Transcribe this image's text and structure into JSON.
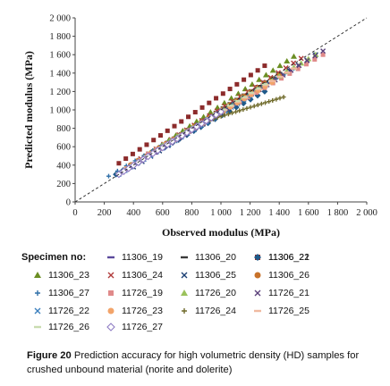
{
  "chart_data": {
    "type": "scatter",
    "xlabel": "Observed modulus (MPa)",
    "ylabel": "Predicted modulus (MPa)",
    "xlim": [
      0,
      2000
    ],
    "ylim": [
      0,
      2000
    ],
    "xticks": [
      "0",
      "200",
      "400",
      "600",
      "800",
      "1 000",
      "1 200",
      "1 400",
      "1 600",
      "1 800",
      "2 000"
    ],
    "yticks": [
      "0",
      "200",
      "400",
      "600",
      "800",
      "1 000",
      "1 200",
      "1 400",
      "1 600",
      "1 800",
      "2 000"
    ],
    "grid": false,
    "reference_line": "y = x (dashed)",
    "legend_title": "Specimen no:",
    "series": [
      {
        "name": "11306_19",
        "marker": "dash",
        "color": "#5b4a9c",
        "range": [
          [
            300,
            300
          ],
          [
            1300,
            1250
          ]
        ]
      },
      {
        "name": "11306_20",
        "marker": "dash",
        "color": "#3a3a3a",
        "range": [
          [
            400,
            420
          ],
          [
            1400,
            1400
          ]
        ]
      },
      {
        "name": "11306_21",
        "marker": "square",
        "color": "#8c2b2b",
        "range": [
          [
            300,
            420
          ],
          [
            1300,
            1480
          ]
        ]
      },
      {
        "name": "11306_22",
        "marker": "diamond",
        "color": "#1f5a8a",
        "range": [
          [
            280,
            300
          ],
          [
            1300,
            1200
          ]
        ]
      },
      {
        "name": "11306_23",
        "marker": "triangle",
        "color": "#6b8e23",
        "range": [
          [
            500,
            520
          ],
          [
            1500,
            1580
          ]
        ]
      },
      {
        "name": "11306_24",
        "marker": "x",
        "color": "#b03a3a",
        "range": [
          [
            450,
            470
          ],
          [
            1550,
            1560
          ]
        ]
      },
      {
        "name": "11306_25",
        "marker": "x",
        "color": "#1a3e73",
        "range": [
          [
            400,
            380
          ],
          [
            1650,
            1600
          ]
        ]
      },
      {
        "name": "11306_26",
        "marker": "circle",
        "color": "#c8722a",
        "range": [
          [
            380,
            400
          ],
          [
            1400,
            1380
          ]
        ]
      },
      {
        "name": "11306_27",
        "marker": "plus",
        "color": "#2f6fa8",
        "range": [
          [
            230,
            280
          ],
          [
            1500,
            1450
          ]
        ]
      },
      {
        "name": "11726_19",
        "marker": "square",
        "color": "#e08a8a",
        "range": [
          [
            500,
            520
          ],
          [
            1700,
            1600
          ]
        ]
      },
      {
        "name": "11726_20",
        "marker": "triangle",
        "color": "#9bc25c",
        "range": [
          [
            600,
            620
          ],
          [
            1650,
            1600
          ]
        ]
      },
      {
        "name": "11726_21",
        "marker": "x",
        "color": "#5a3f7a",
        "range": [
          [
            550,
            540
          ],
          [
            1700,
            1640
          ]
        ]
      },
      {
        "name": "11726_22",
        "marker": "x",
        "color": "#3b7fbd",
        "range": [
          [
            300,
            300
          ],
          [
            1200,
            1150
          ]
        ]
      },
      {
        "name": "11726_23",
        "marker": "circle",
        "color": "#f2a46a",
        "range": [
          [
            350,
            360
          ],
          [
            1350,
            1300
          ]
        ]
      },
      {
        "name": "11726_24",
        "marker": "plus",
        "color": "#6f6a2a",
        "range": [
          [
            900,
            880
          ],
          [
            1430,
            1140
          ]
        ]
      },
      {
        "name": "11726_25",
        "marker": "dash",
        "color": "#f0b9a0",
        "range": [
          [
            500,
            500
          ],
          [
            1500,
            1450
          ]
        ]
      },
      {
        "name": "11726_26",
        "marker": "dash",
        "color": "#c9dcb0",
        "range": [
          [
            300,
            310
          ],
          [
            1300,
            1280
          ]
        ]
      },
      {
        "name": "11726_27",
        "marker": "diamondOpen",
        "color": "#8e7cc3",
        "range": [
          [
            300,
            300
          ],
          [
            1000,
            980
          ]
        ]
      }
    ]
  },
  "caption": {
    "lead": "Figure 20",
    "text": " Prediction accuracy for high volumetric density (HD) samples for crushed unbound material (norite and dolerite)"
  }
}
